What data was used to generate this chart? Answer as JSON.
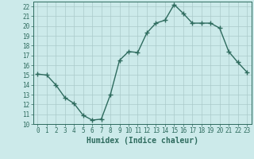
{
  "x": [
    0,
    1,
    2,
    3,
    4,
    5,
    6,
    7,
    8,
    9,
    10,
    11,
    12,
    13,
    14,
    15,
    16,
    17,
    18,
    19,
    20,
    21,
    22,
    23
  ],
  "y": [
    15.1,
    15.0,
    14.0,
    12.7,
    12.1,
    10.9,
    10.4,
    10.5,
    13.0,
    16.5,
    17.4,
    17.3,
    19.3,
    20.3,
    20.6,
    22.2,
    21.3,
    20.3,
    20.3,
    20.3,
    19.8,
    17.4,
    16.3,
    15.3
  ],
  "line_color": "#2e6b5e",
  "marker": "+",
  "markersize": 4,
  "linewidth": 1.0,
  "bg_color": "#cceaea",
  "grid_color": "#aacaca",
  "xlabel": "Humidex (Indice chaleur)",
  "ylim": [
    10,
    22.5
  ],
  "xlim": [
    -0.5,
    23.5
  ],
  "yticks": [
    10,
    11,
    12,
    13,
    14,
    15,
    16,
    17,
    18,
    19,
    20,
    21,
    22
  ],
  "xticks": [
    0,
    1,
    2,
    3,
    4,
    5,
    6,
    7,
    8,
    9,
    10,
    11,
    12,
    13,
    14,
    15,
    16,
    17,
    18,
    19,
    20,
    21,
    22,
    23
  ],
  "tick_label_fontsize": 5.5,
  "xlabel_fontsize": 7,
  "tick_color": "#2e6b5e",
  "axis_color": "#2e6b5e",
  "markeredgewidth": 1.0
}
